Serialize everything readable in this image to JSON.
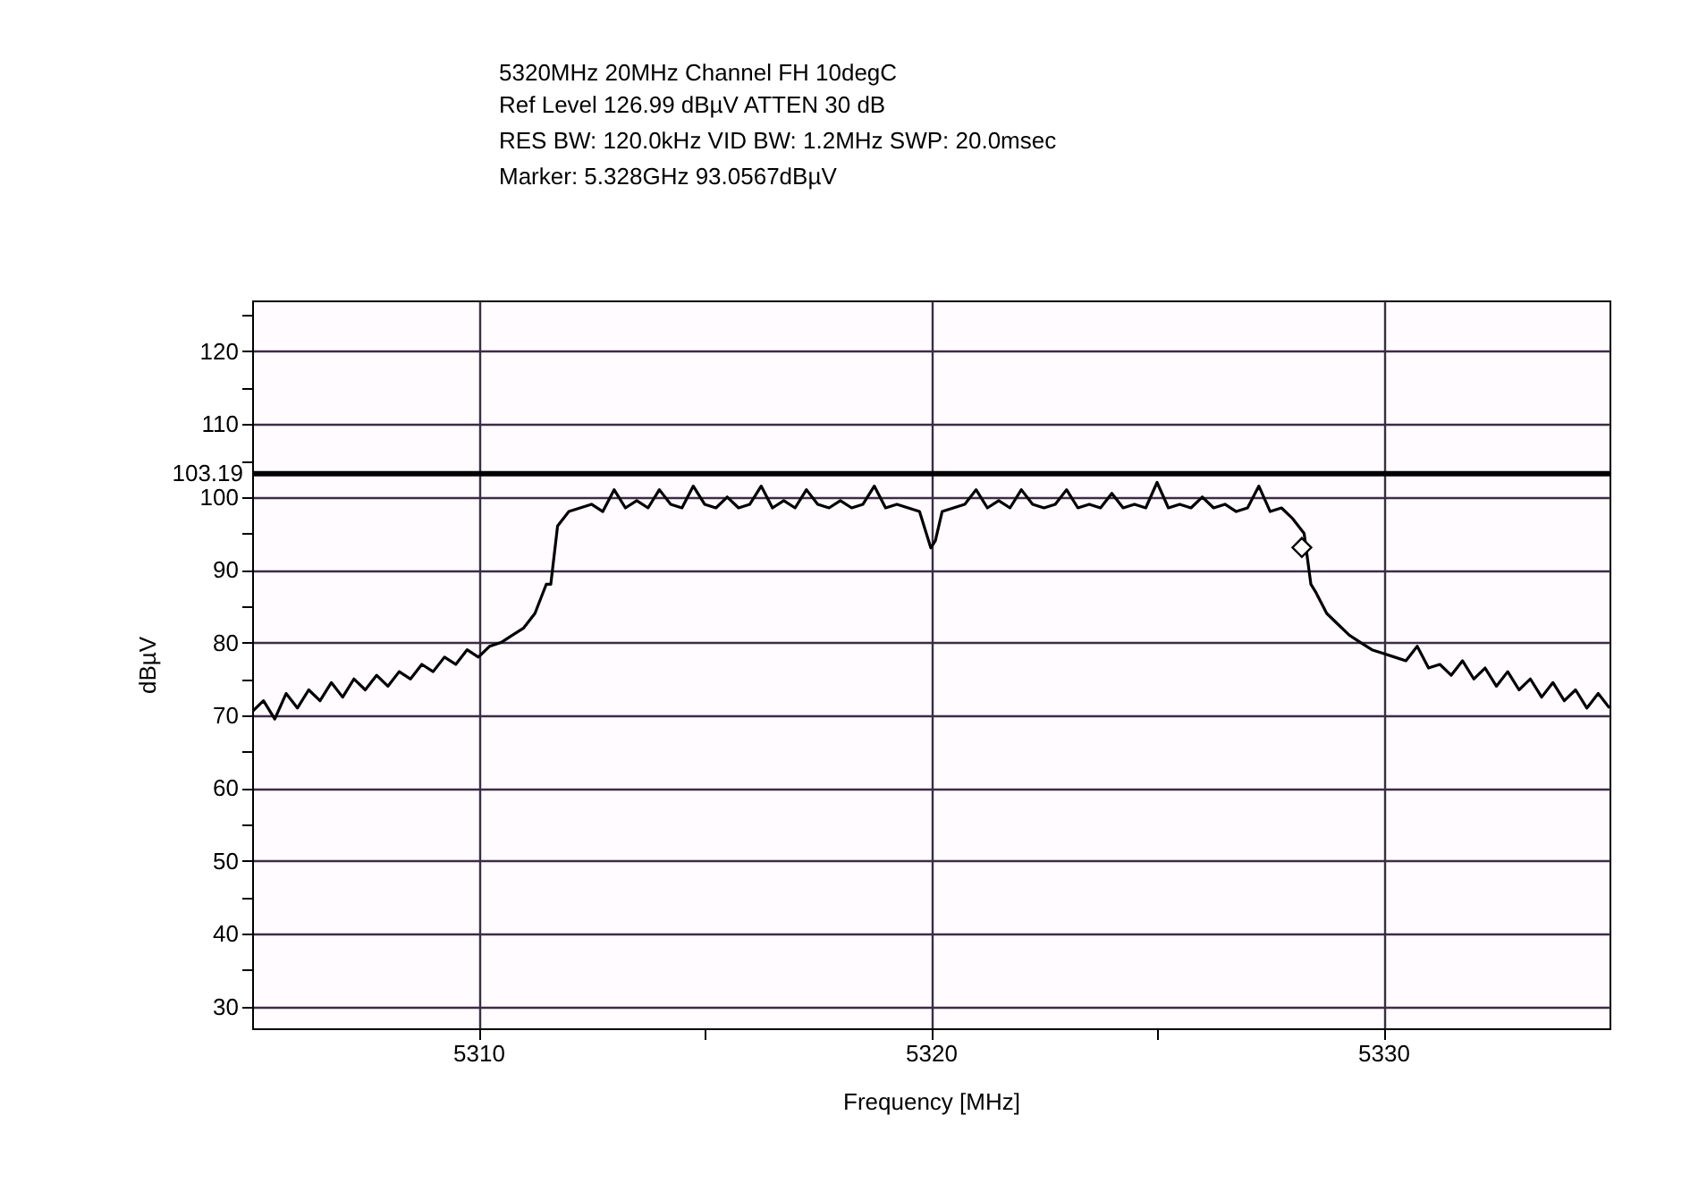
{
  "chart_data": {
    "type": "line",
    "title": "5320MHz 20MHz Channel FH 10degC",
    "annotations": [
      "Ref Level 126.99 dBµV    ATTEN 30 dB",
      "RES BW: 120.0kHz  VID BW: 1.2MHz  SWP: 20.0msec",
      "Marker: 5.328GHz  93.0567dBµV"
    ],
    "xlabel": "Frequency [MHz]",
    "ylabel": "dBµV",
    "x": [
      5305,
      5305.25,
      5305.5,
      5305.75,
      5306,
      5306.25,
      5306.5,
      5306.75,
      5307,
      5307.25,
      5307.5,
      5307.75,
      5308,
      5308.25,
      5308.5,
      5308.75,
      5309,
      5309.25,
      5309.5,
      5309.75,
      5310,
      5310.25,
      5310.5,
      5310.75,
      5311,
      5311.25,
      5311.5,
      5311.6,
      5311.75,
      5312,
      5312.25,
      5312.5,
      5312.75,
      5313,
      5313.25,
      5313.5,
      5313.75,
      5314,
      5314.25,
      5314.5,
      5314.75,
      5315,
      5315.25,
      5315.5,
      5315.75,
      5316,
      5316.25,
      5316.5,
      5316.75,
      5317,
      5317.25,
      5317.5,
      5317.75,
      5318,
      5318.25,
      5318.5,
      5318.75,
      5319,
      5319.25,
      5319.5,
      5319.75,
      5319.9,
      5320,
      5320.1,
      5320.25,
      5320.5,
      5320.75,
      5321,
      5321.25,
      5321.5,
      5321.75,
      5322,
      5322.25,
      5322.5,
      5322.75,
      5323,
      5323.25,
      5323.5,
      5323.75,
      5324,
      5324.25,
      5324.5,
      5324.75,
      5325,
      5325.25,
      5325.5,
      5325.75,
      5326,
      5326.25,
      5326.5,
      5326.75,
      5327,
      5327.25,
      5327.5,
      5327.75,
      5328,
      5328.25,
      5328.4,
      5328.5,
      5328.75,
      5329,
      5329.25,
      5329.5,
      5329.75,
      5330,
      5330.25,
      5330.5,
      5330.75,
      5331,
      5331.25,
      5331.5,
      5331.75,
      5332,
      5332.25,
      5332.5,
      5332.75,
      5333,
      5333.25,
      5333.5,
      5333.75,
      5334,
      5334.25,
      5334.5,
      5334.75,
      5335
    ],
    "series": [
      {
        "color": "#000000",
        "values": [
          70.5,
          72,
          69.5,
          73,
          71,
          73.5,
          72,
          74.5,
          72.5,
          75,
          73.5,
          75.5,
          74,
          76,
          75,
          77,
          76,
          78,
          77,
          79,
          78,
          79.5,
          80,
          81,
          82,
          84,
          88,
          88,
          96,
          98,
          98.5,
          99,
          98,
          101,
          98.5,
          99.5,
          98.5,
          101,
          99,
          98.5,
          101.5,
          99,
          98.5,
          100,
          98.5,
          99,
          101.5,
          98.5,
          99.5,
          98.5,
          101,
          99,
          98.5,
          99.5,
          98.5,
          99,
          101.5,
          98.5,
          99,
          98.5,
          98,
          95,
          93,
          94,
          98,
          98.5,
          99,
          101,
          98.5,
          99.5,
          98.5,
          101,
          99,
          98.5,
          99,
          101,
          98.5,
          99,
          98.5,
          100.5,
          98.5,
          99,
          98.5,
          102,
          98.5,
          99,
          98.5,
          100,
          98.5,
          99,
          98,
          98.5,
          101.5,
          98,
          98.5,
          97,
          95,
          88,
          87,
          84,
          82.5,
          81,
          80,
          79,
          78.5,
          78,
          77.5,
          79.5,
          76.5,
          77,
          75.5,
          77.5,
          75,
          76.5,
          74,
          76,
          73.5,
          75,
          72.5,
          74.5,
          72,
          73.5,
          71,
          73,
          71
        ]
      },
      {
        "type": "scatter",
        "marker": "diamond",
        "color": "#000000",
        "x": [
          5328.2
        ],
        "values": [
          93.06
        ]
      }
    ],
    "xlim": [
      5305,
      5335
    ],
    "xticks": [
      5310,
      {
        "value": 5315,
        "label": null
      },
      5320,
      {
        "value": 5325,
        "label": null
      },
      5330
    ],
    "ylim": [
      27,
      127
    ],
    "yticks": [
      30,
      {
        "value": 35,
        "label": null
      },
      40,
      {
        "value": 45,
        "label": null
      },
      50,
      {
        "value": 55,
        "label": null
      },
      60,
      {
        "value": 65,
        "label": null
      },
      70,
      {
        "value": 75,
        "label": null
      },
      80,
      {
        "value": 85,
        "label": null
      },
      90,
      {
        "value": 95,
        "label": null
      },
      100,
      {
        "value": 105,
        "label": null
      },
      110,
      {
        "value": 115,
        "label": null
      },
      120,
      {
        "value": 125,
        "label": null
      }
    ],
    "grid": true,
    "ref_lines": [
      {
        "axis": "y",
        "value": 103.19,
        "label": "103.19",
        "color": "#000000"
      }
    ]
  }
}
